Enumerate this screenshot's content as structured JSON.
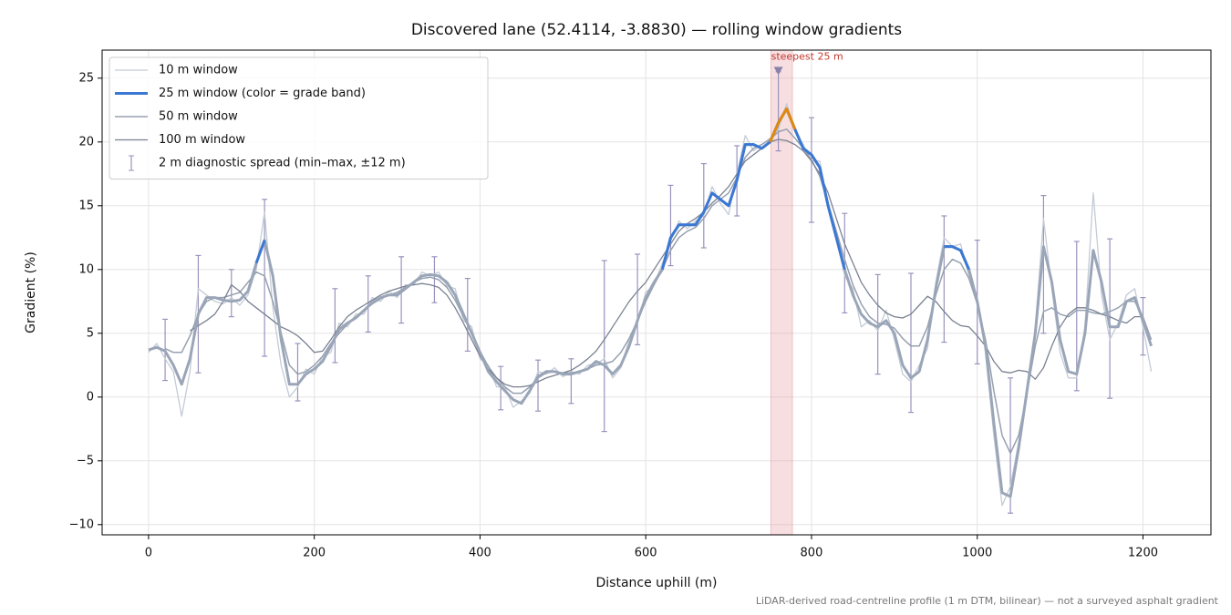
{
  "chart_data": {
    "type": "line",
    "title": "Discovered lane (52.4114, -3.8830) — rolling window gradients",
    "xlabel": "Distance uphill (m)",
    "ylabel": "Gradient (%)",
    "note": "LiDAR-derived road-centreline profile (1 m DTM, bilinear) — not a surveyed asphalt gradient",
    "xlim": [
      -56,
      1282
    ],
    "ylim": [
      -10.8,
      27.2
    ],
    "xticks": [
      0,
      200,
      400,
      600,
      800,
      1000,
      1200
    ],
    "yticks": [
      {
        "value": -10,
        "label": "−10"
      },
      {
        "value": -5,
        "label": "−5"
      },
      0,
      5,
      10,
      15,
      20,
      25
    ],
    "grid": true,
    "legend": "upper left",
    "x": [
      0,
      10,
      20,
      30,
      40,
      50,
      60,
      70,
      80,
      90,
      100,
      110,
      120,
      130,
      140,
      150,
      160,
      170,
      180,
      190,
      200,
      210,
      220,
      230,
      240,
      250,
      260,
      270,
      280,
      290,
      300,
      310,
      320,
      330,
      340,
      350,
      360,
      370,
      380,
      390,
      400,
      410,
      420,
      430,
      440,
      450,
      460,
      470,
      480,
      490,
      500,
      510,
      520,
      530,
      540,
      550,
      560,
      570,
      580,
      590,
      600,
      610,
      620,
      630,
      640,
      650,
      660,
      670,
      680,
      690,
      700,
      710,
      720,
      730,
      740,
      750,
      760,
      770,
      780,
      790,
      800,
      810,
      820,
      830,
      840,
      850,
      860,
      870,
      880,
      890,
      900,
      910,
      920,
      930,
      940,
      950,
      960,
      970,
      980,
      990,
      1000,
      1010,
      1020,
      1030,
      1040,
      1050,
      1060,
      1070,
      1080,
      1090,
      1100,
      1110,
      1120,
      1130,
      1140,
      1150,
      1160,
      1170,
      1180,
      1190,
      1200,
      1210
    ],
    "series": [
      {
        "name": "10 m window",
        "color": "#c4cbd6",
        "width": 1.3,
        "values": [
          3.5,
          4.2,
          3.0,
          2.0,
          -1.5,
          2.0,
          8.5,
          8.0,
          7.5,
          7.3,
          7.8,
          7.2,
          8.0,
          10.0,
          14.5,
          7.0,
          2.5,
          0.0,
          0.8,
          2.2,
          1.8,
          3.2,
          3.5,
          5.8,
          5.5,
          6.5,
          6.5,
          7.8,
          7.5,
          8.3,
          7.8,
          8.8,
          8.8,
          9.8,
          9.5,
          9.8,
          8.7,
          8.5,
          6.0,
          5.5,
          3.0,
          2.5,
          0.8,
          0.8,
          -0.8,
          -0.3,
          0.3,
          2.0,
          1.8,
          2.3,
          1.6,
          2.0,
          1.8,
          2.5,
          2.6,
          3.0,
          1.5,
          2.3,
          4.5,
          5.8,
          8.2,
          8.8,
          10.5,
          12.2,
          13.8,
          13.2,
          13.8,
          14.2,
          16.5,
          15.2,
          14.3,
          17.5,
          20.5,
          19.3,
          19.8,
          20.3,
          21.0,
          23.0,
          20.8,
          19.8,
          18.5,
          18.5,
          14.8,
          12.8,
          9.5,
          8.5,
          5.5,
          6.0,
          5.2,
          6.8,
          4.5,
          1.8,
          1.2,
          2.5,
          3.8,
          9.0,
          12.5,
          11.8,
          12.0,
          9.5,
          7.8,
          3.5,
          -3.0,
          -8.5,
          -7.0,
          -3.5,
          0.0,
          5.5,
          14.0,
          8.5,
          3.5,
          1.5,
          1.5,
          5.5,
          16.0,
          8.0,
          4.5,
          5.8,
          8.0,
          8.5,
          5.5,
          2.0
        ]
      },
      {
        "name": "25 m window (color = grade band)",
        "color": "#9aa6b8",
        "legend_color": "#3a78d4",
        "width": 3,
        "bands": [
          {
            "min": 10,
            "color": "#3a78d4"
          },
          {
            "min": 20,
            "color": "#e08a0c"
          }
        ],
        "values": [
          3.7,
          3.9,
          3.6,
          2.5,
          1.0,
          3.0,
          6.5,
          7.8,
          7.8,
          7.6,
          7.5,
          7.6,
          8.3,
          10.5,
          12.3,
          9.5,
          4.5,
          1.0,
          1.0,
          1.8,
          2.2,
          2.8,
          4.0,
          5.3,
          5.8,
          6.2,
          6.8,
          7.4,
          7.8,
          8.0,
          8.0,
          8.5,
          9.0,
          9.5,
          9.6,
          9.5,
          9.0,
          8.0,
          6.5,
          5.0,
          3.5,
          2.0,
          1.2,
          0.5,
          -0.2,
          -0.5,
          0.5,
          1.6,
          2.0,
          2.0,
          1.8,
          1.8,
          2.0,
          2.2,
          2.8,
          2.5,
          1.8,
          2.5,
          4.0,
          6.0,
          7.8,
          9.0,
          10.0,
          12.5,
          13.5,
          13.5,
          13.5,
          14.5,
          16.0,
          15.5,
          15.0,
          17.0,
          19.8,
          19.8,
          19.5,
          20.0,
          21.5,
          22.6,
          21.0,
          19.5,
          19.0,
          18.0,
          15.0,
          12.5,
          10.0,
          8.0,
          6.5,
          5.8,
          5.5,
          6.0,
          5.0,
          2.5,
          1.5,
          2.0,
          4.5,
          8.5,
          11.8,
          11.8,
          11.5,
          10.0,
          7.5,
          4.0,
          -2.0,
          -7.5,
          -7.8,
          -4.0,
          0.5,
          5.0,
          11.8,
          9.0,
          4.5,
          2.0,
          1.8,
          5.0,
          11.5,
          9.0,
          5.5,
          5.5,
          7.5,
          7.8,
          6.0,
          4.0
        ]
      },
      {
        "name": "50 m window",
        "color": "#96a0b0",
        "width": 1.5,
        "values": [
          null,
          null,
          3.8,
          3.5,
          3.5,
          4.8,
          6.5,
          7.5,
          7.8,
          7.8,
          8.0,
          8.2,
          9.0,
          9.8,
          9.5,
          7.5,
          5.0,
          2.5,
          1.8,
          2.0,
          2.5,
          3.2,
          4.2,
          5.0,
          5.7,
          6.3,
          6.8,
          7.3,
          7.7,
          8.0,
          8.2,
          8.6,
          9.0,
          9.3,
          9.4,
          9.2,
          8.6,
          7.6,
          6.3,
          5.0,
          3.6,
          2.4,
          1.5,
          0.8,
          0.3,
          0.3,
          0.8,
          1.5,
          1.9,
          2.0,
          1.9,
          1.9,
          2.0,
          2.2,
          2.5,
          2.6,
          2.8,
          3.5,
          4.6,
          6.0,
          7.5,
          8.8,
          10.0,
          11.5,
          12.5,
          13.0,
          13.3,
          14.0,
          15.0,
          15.5,
          16.0,
          17.2,
          18.8,
          19.5,
          19.8,
          20.2,
          20.8,
          21.0,
          20.3,
          19.5,
          18.6,
          17.3,
          15.2,
          13.0,
          10.8,
          8.8,
          7.3,
          6.3,
          5.8,
          5.7,
          5.4,
          4.6,
          4.0,
          4.0,
          5.5,
          8.0,
          10.0,
          10.8,
          10.5,
          9.3,
          7.3,
          4.5,
          0.5,
          -3.0,
          -4.4,
          -3.0,
          0.3,
          4.0,
          6.7,
          7.0,
          6.5,
          6.3,
          6.8,
          6.8,
          6.6,
          6.5,
          6.7,
          7.0,
          7.5,
          7.5,
          6.3,
          4.5
        ]
      },
      {
        "name": "100 m window",
        "color": "#7a8191",
        "width": 1.3,
        "values": [
          null,
          null,
          null,
          null,
          null,
          5.2,
          5.6,
          6.0,
          6.5,
          7.5,
          8.8,
          8.3,
          7.5,
          7.0,
          6.5,
          6.0,
          5.5,
          5.2,
          4.8,
          4.2,
          3.5,
          3.6,
          4.5,
          5.5,
          6.3,
          6.8,
          7.2,
          7.6,
          8.0,
          8.3,
          8.5,
          8.7,
          8.8,
          8.9,
          8.8,
          8.6,
          8.0,
          7.0,
          5.8,
          4.5,
          3.2,
          2.2,
          1.5,
          1.0,
          0.8,
          0.8,
          0.9,
          1.2,
          1.5,
          1.7,
          1.9,
          2.1,
          2.5,
          3.0,
          3.6,
          4.5,
          5.5,
          6.5,
          7.5,
          8.3,
          9.0,
          10.0,
          11.0,
          12.0,
          13.0,
          13.6,
          14.0,
          14.5,
          15.2,
          15.8,
          16.5,
          17.5,
          18.5,
          19.0,
          19.5,
          20.0,
          20.2,
          20.1,
          19.8,
          19.3,
          18.5,
          17.5,
          16.0,
          14.0,
          12.0,
          10.5,
          9.0,
          8.0,
          7.2,
          6.6,
          6.3,
          6.2,
          6.5,
          7.2,
          7.9,
          7.5,
          6.7,
          6.0,
          5.6,
          5.5,
          4.8,
          4.0,
          2.8,
          2.0,
          1.9,
          2.1,
          2.0,
          1.4,
          2.3,
          4.0,
          5.5,
          6.5,
          7.0,
          7.0,
          6.8,
          6.5,
          6.3,
          6.0,
          5.8,
          6.3,
          6.3,
          null
        ]
      }
    ],
    "errorbars": {
      "name": "2 m diagnostic spread (min–max, ±12 m)",
      "color": "#9a93bd",
      "x": [
        20,
        60,
        100,
        140,
        180,
        225,
        265,
        305,
        345,
        385,
        425,
        470,
        510,
        550,
        590,
        630,
        670,
        710,
        760,
        800,
        840,
        880,
        920,
        960,
        1000,
        1040,
        1080,
        1120,
        1160,
        1200
      ],
      "low": [
        1.3,
        1.9,
        6.3,
        3.2,
        -0.3,
        2.7,
        5.1,
        5.8,
        7.4,
        3.6,
        -1.0,
        -1.1,
        -0.5,
        -2.7,
        4.1,
        10.3,
        11.7,
        14.2,
        19.3,
        13.7,
        6.6,
        1.8,
        -1.2,
        4.3,
        2.6,
        -9.1,
        5.0,
        0.5,
        -0.1,
        3.3
      ],
      "high": [
        6.1,
        11.1,
        10.0,
        15.5,
        4.2,
        8.5,
        9.5,
        11.0,
        11.0,
        9.3,
        2.4,
        2.9,
        3.0,
        10.7,
        11.2,
        16.6,
        18.3,
        19.7,
        25.5,
        21.9,
        14.4,
        9.6,
        9.7,
        14.2,
        12.3,
        1.5,
        15.8,
        12.2,
        12.4,
        7.8
      ]
    },
    "highlight_x": [
      751,
      777
    ],
    "highlight_color": "#e8a0a8",
    "annotation": {
      "text": "steepest 25 m",
      "x": 760,
      "y": 25.6,
      "color": "#c0392b",
      "marker_color": "#8a80aa"
    }
  }
}
